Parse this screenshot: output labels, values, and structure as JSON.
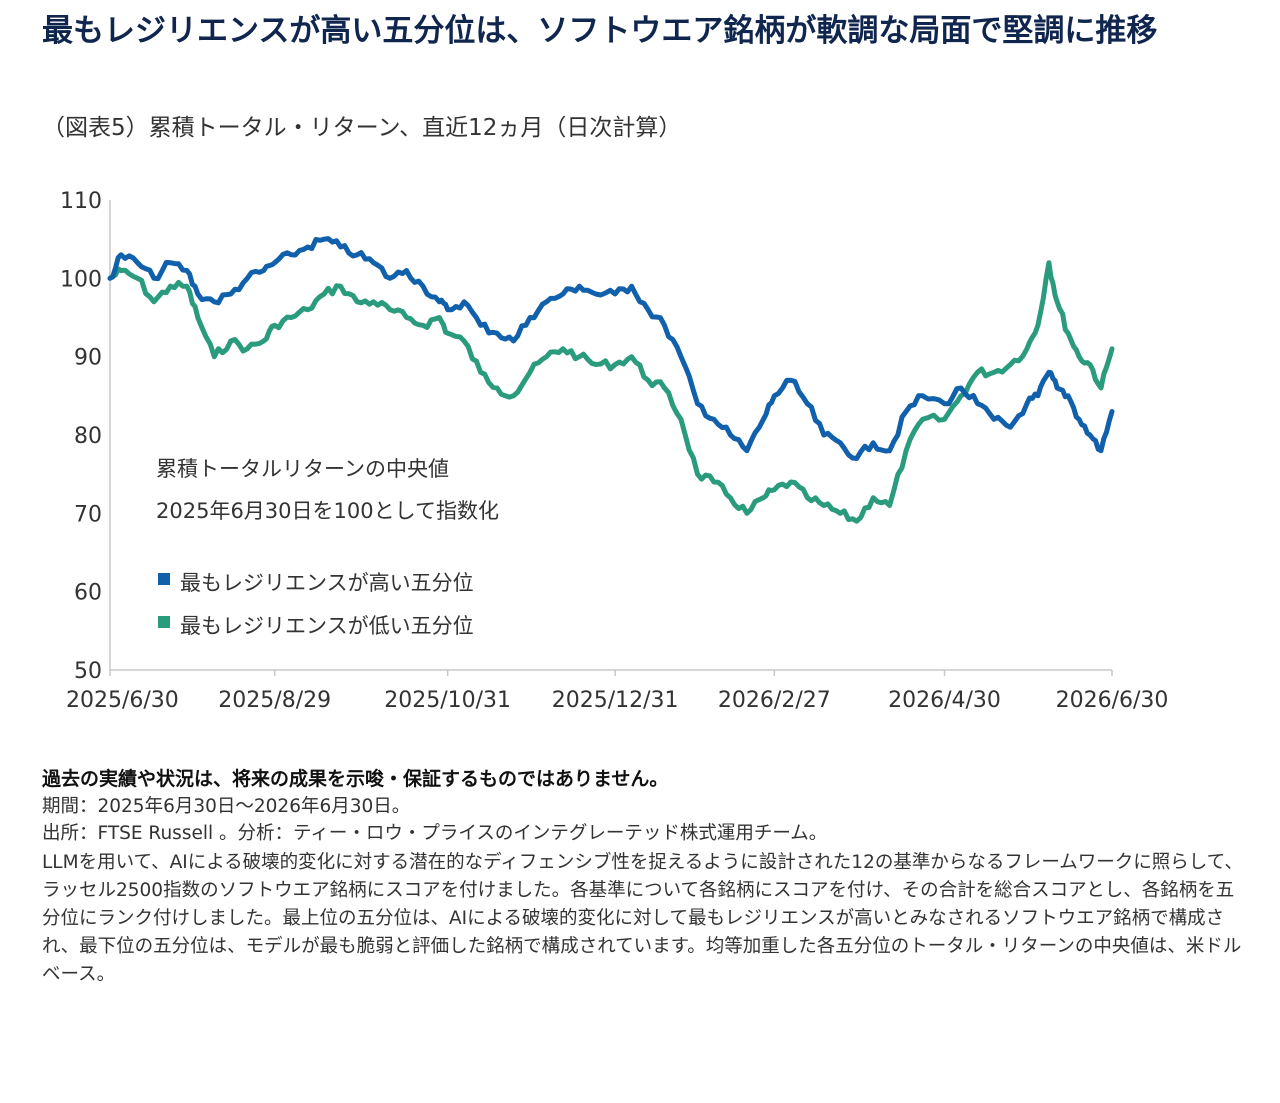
{
  "header": {
    "title": "最もレジリエンスが高い五分位は、ソフトウエア銘柄が軟調な局面で堅調に推移",
    "subtitle": "（図表5）累積トータル・リターン、直近12ヵ月（日次計算）"
  },
  "chart_data": {
    "type": "line",
    "title": "最もレジリエンスが高い五分位は、ソフトウエア銘柄が軟調な局面で堅調に推移",
    "subtitle": "（図表5）累積トータル・リターン、直近12ヵ月（日次計算）",
    "ylim": [
      50,
      110
    ],
    "yticks": [
      110,
      100,
      90,
      80,
      70,
      60,
      50
    ],
    "xlim": [
      "2025-06-30",
      "2026-06-30"
    ],
    "xtick_labels": [
      "2025/6/30",
      "2025/8/29",
      "2025/10/31",
      "2025/12/31",
      "2026/2/27",
      "2026/4/30",
      "2026/6/30"
    ],
    "xtick_dates": [
      "2025-06-30",
      "2025-08-29",
      "2025-10-31",
      "2025-12-31",
      "2026-02-27",
      "2026-04-30",
      "2026-06-30"
    ],
    "grid": false,
    "annotation": [
      "累積トータルリターンの中央値",
      "2025年6月30日を100として指数化"
    ],
    "legend_position": "lower-left",
    "series": [
      {
        "name": "最もレジリエンスが高い五分位",
        "color": "#1060ac",
        "points": [
          [
            "2025-06-30",
            100
          ],
          [
            "2025-07-04",
            103
          ],
          [
            "2025-07-10",
            102
          ],
          [
            "2025-07-16",
            100
          ],
          [
            "2025-07-22",
            102
          ],
          [
            "2025-07-28",
            101
          ],
          [
            "2025-08-01",
            98
          ],
          [
            "2025-08-07",
            97
          ],
          [
            "2025-08-13",
            98
          ],
          [
            "2025-08-19",
            100
          ],
          [
            "2025-08-25",
            101
          ],
          [
            "2025-08-29",
            102
          ],
          [
            "2025-09-04",
            103
          ],
          [
            "2025-09-10",
            104
          ],
          [
            "2025-09-16",
            105
          ],
          [
            "2025-09-22",
            104
          ],
          [
            "2025-09-28",
            103
          ],
          [
            "2025-10-04",
            102
          ],
          [
            "2025-10-10",
            100
          ],
          [
            "2025-10-16",
            101
          ],
          [
            "2025-10-22",
            99
          ],
          [
            "2025-10-28",
            97
          ],
          [
            "2025-10-31",
            96
          ],
          [
            "2025-11-06",
            97
          ],
          [
            "2025-11-12",
            94
          ],
          [
            "2025-11-18",
            93
          ],
          [
            "2025-11-24",
            92
          ],
          [
            "2025-11-30",
            95
          ],
          [
            "2025-12-06",
            97
          ],
          [
            "2025-12-12",
            98
          ],
          [
            "2025-12-18",
            99
          ],
          [
            "2025-12-24",
            98
          ],
          [
            "2025-12-31",
            98
          ],
          [
            "2026-01-06",
            99
          ],
          [
            "2026-01-12",
            96
          ],
          [
            "2026-01-18",
            94
          ],
          [
            "2026-01-24",
            90
          ],
          [
            "2026-01-30",
            84
          ],
          [
            "2026-02-05",
            82
          ],
          [
            "2026-02-11",
            80
          ],
          [
            "2026-02-17",
            78
          ],
          [
            "2026-02-23",
            82
          ],
          [
            "2026-02-27",
            85
          ],
          [
            "2026-03-05",
            87
          ],
          [
            "2026-03-11",
            84
          ],
          [
            "2026-03-17",
            80
          ],
          [
            "2026-03-23",
            79
          ],
          [
            "2026-03-29",
            77
          ],
          [
            "2026-04-04",
            79
          ],
          [
            "2026-04-10",
            78
          ],
          [
            "2026-04-16",
            83
          ],
          [
            "2026-04-22",
            85
          ],
          [
            "2026-04-30",
            84
          ],
          [
            "2026-05-06",
            86
          ],
          [
            "2026-05-12",
            84
          ],
          [
            "2026-05-18",
            82
          ],
          [
            "2026-05-24",
            81
          ],
          [
            "2026-05-30",
            84
          ],
          [
            "2026-06-03",
            85
          ],
          [
            "2026-06-07",
            88
          ],
          [
            "2026-06-10",
            86
          ],
          [
            "2026-06-14",
            85
          ],
          [
            "2026-06-18",
            82
          ],
          [
            "2026-06-22",
            80
          ],
          [
            "2026-06-26",
            78
          ],
          [
            "2026-06-30",
            83
          ]
        ]
      },
      {
        "name": "最もレジリエンスが低い五分位",
        "color": "#2a9b7d",
        "points": [
          [
            "2025-06-30",
            100
          ],
          [
            "2025-07-04",
            101
          ],
          [
            "2025-07-10",
            100
          ],
          [
            "2025-07-16",
            97
          ],
          [
            "2025-07-22",
            99
          ],
          [
            "2025-07-28",
            99
          ],
          [
            "2025-08-01",
            95
          ],
          [
            "2025-08-07",
            90
          ],
          [
            "2025-08-13",
            92
          ],
          [
            "2025-08-19",
            91
          ],
          [
            "2025-08-25",
            92
          ],
          [
            "2025-08-29",
            94
          ],
          [
            "2025-09-04",
            95
          ],
          [
            "2025-09-10",
            96
          ],
          [
            "2025-09-16",
            98
          ],
          [
            "2025-09-22",
            99
          ],
          [
            "2025-09-28",
            97
          ],
          [
            "2025-10-04",
            97
          ],
          [
            "2025-10-10",
            96
          ],
          [
            "2025-10-16",
            95
          ],
          [
            "2025-10-22",
            94
          ],
          [
            "2025-10-28",
            95
          ],
          [
            "2025-10-31",
            93
          ],
          [
            "2025-11-06",
            92
          ],
          [
            "2025-11-12",
            88
          ],
          [
            "2025-11-18",
            86
          ],
          [
            "2025-11-24",
            85
          ],
          [
            "2025-11-30",
            88
          ],
          [
            "2025-12-06",
            90
          ],
          [
            "2025-12-12",
            91
          ],
          [
            "2025-12-18",
            90
          ],
          [
            "2025-12-24",
            89
          ],
          [
            "2025-12-31",
            89
          ],
          [
            "2026-01-06",
            90
          ],
          [
            "2026-01-12",
            87
          ],
          [
            "2026-01-18",
            86
          ],
          [
            "2026-01-24",
            82
          ],
          [
            "2026-01-30",
            75
          ],
          [
            "2026-02-05",
            74
          ],
          [
            "2026-02-11",
            72
          ],
          [
            "2026-02-17",
            70
          ],
          [
            "2026-02-23",
            72
          ],
          [
            "2026-02-27",
            73
          ],
          [
            "2026-03-05",
            74
          ],
          [
            "2026-03-11",
            72
          ],
          [
            "2026-03-17",
            71
          ],
          [
            "2026-03-23",
            70
          ],
          [
            "2026-03-29",
            69
          ],
          [
            "2026-04-04",
            72
          ],
          [
            "2026-04-10",
            71
          ],
          [
            "2026-04-16",
            78
          ],
          [
            "2026-04-22",
            82
          ],
          [
            "2026-04-30",
            82
          ],
          [
            "2026-05-06",
            85
          ],
          [
            "2026-05-12",
            88
          ],
          [
            "2026-05-18",
            88
          ],
          [
            "2026-05-24",
            89
          ],
          [
            "2026-05-30",
            91
          ],
          [
            "2026-06-03",
            94
          ],
          [
            "2026-06-07",
            102
          ],
          [
            "2026-06-10",
            97
          ],
          [
            "2026-06-14",
            93
          ],
          [
            "2026-06-18",
            90
          ],
          [
            "2026-06-22",
            89
          ],
          [
            "2026-06-26",
            86
          ],
          [
            "2026-06-30",
            91
          ]
        ]
      }
    ]
  },
  "footer": {
    "disclaimer": "過去の実績や状況は、将来の成果を示唆・保証するものではありません。",
    "period": "期間：2025年6月30日～2026年6月30日。",
    "source": "出所：FTSE Russell 。分析：ティー・ロウ・プライスのインテグレーテッド株式運用チーム。",
    "description": "LLMを用いて、AIによる破壊的変化に対する潜在的なディフェンシブ性を捉えるように設計された12の基準からなるフレームワークに照らして、ラッセル2500指数のソフトウエア銘柄にスコアを付けました。各基準について各銘柄にスコアを付け、その合計を総合スコアとし、各銘柄を五分位にランク付けしました。最上位の五分位は、AIによる破壊的変化に対して最もレジリエンスが高いとみなされるソフトウエア銘柄で構成され、最下位の五分位は、モデルが最も脆弱と評価した銘柄で構成されています。均等加重した各五分位のトータル・リターンの中央値は、米ドルベース。"
  }
}
